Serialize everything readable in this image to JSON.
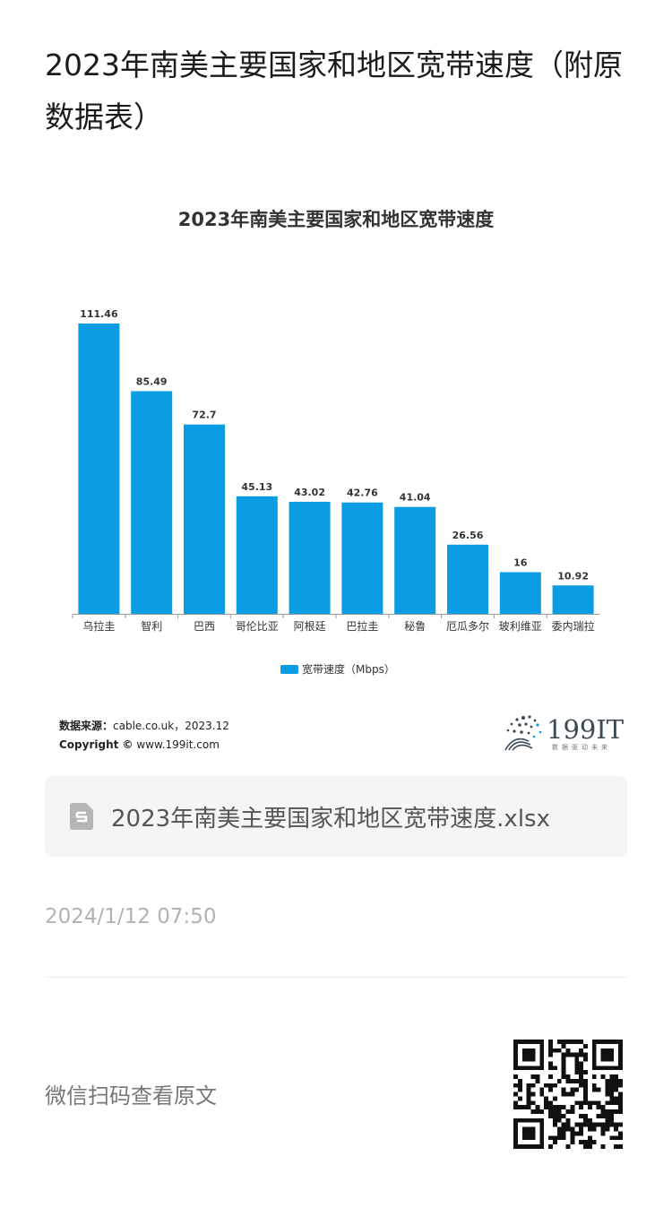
{
  "article": {
    "title": "2023年南美主要国家和地区宽带速度（附原数据表）"
  },
  "chart_data": {
    "type": "bar",
    "title": "2023年南美主要国家和地区宽带速度",
    "categories": [
      "乌拉圭",
      "智利",
      "巴西",
      "哥伦比亚",
      "阿根廷",
      "巴拉圭",
      "秘鲁",
      "厄瓜多尔",
      "玻利维亚",
      "委内瑞拉"
    ],
    "series": [
      {
        "name": "宽带速度（Mbps）",
        "values": [
          111.46,
          85.49,
          72.7,
          45.13,
          43.02,
          42.76,
          41.04,
          26.56,
          16,
          10.92
        ],
        "labels": [
          "111.46",
          "85.49",
          "72.7",
          "45.13",
          "43.02",
          "42.76",
          "41.04",
          "26.56",
          "16",
          "10.92"
        ]
      }
    ],
    "ylim": [
      0,
      111.46
    ],
    "grid": false,
    "legend": "bottom",
    "bar_color": "#0a9de3"
  },
  "source": {
    "label": "数据来源：",
    "text": "cable.co.uk，2023.12",
    "copyright_label": "Copyright ©",
    "copyright_text": "www.199it.com"
  },
  "logo": {
    "name": "199IT",
    "tagline": "数据驱动未来"
  },
  "attachment": {
    "filename": "2023年南美主要国家和地区宽带速度.xlsx",
    "icon": "spreadsheet-file-icon"
  },
  "meta": {
    "date": "2024/1/12 07:50",
    "qr_prompt": "微信扫码查看原文"
  }
}
